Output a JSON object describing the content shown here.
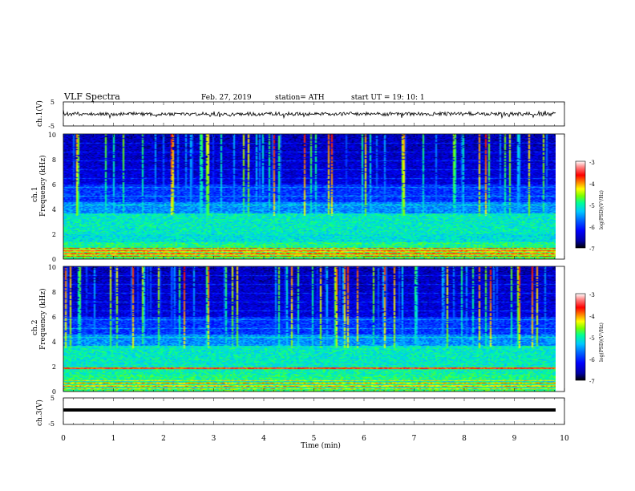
{
  "header": {
    "title": "VLF  Spectra",
    "date": "Feb. 27, 2019",
    "station": "station= ATH",
    "start": "start  UT  =    19: 10: 1"
  },
  "colors": {
    "colormap": [
      "#000000",
      "#0000a0",
      "#0000ff",
      "#0066ff",
      "#00c8ff",
      "#00ff96",
      "#78ff00",
      "#ffff00",
      "#ff8000",
      "#ff0000",
      "#ff8080",
      "#ffffff"
    ],
    "trace": "#000000"
  },
  "chart_data": [
    {
      "type": "line",
      "panel": "ch1",
      "ylabel": "ch.1(V)",
      "ylim": [
        -5,
        5
      ],
      "yticks": [
        "5",
        "-5"
      ],
      "xlim": [
        0,
        10
      ],
      "description_values": {
        "baseline": 0,
        "amplitude_range": [
          -1.2,
          1.2
        ]
      }
    },
    {
      "type": "heatmap",
      "panel": "ch1",
      "ylabel_top": "ch.1",
      "ylabel": "Frequency  (kHz)",
      "ylim": [
        0,
        10
      ],
      "yticks": [
        "0",
        "2",
        "4",
        "6",
        "8",
        "10"
      ],
      "xlim": [
        0,
        9.8
      ],
      "colorbar": {
        "label": "log(PSD)(V²/Hz)",
        "range": [
          -7,
          -3
        ],
        "ticks": [
          "-3",
          "-4",
          "-5",
          "-6",
          "-7"
        ]
      }
    },
    {
      "type": "heatmap",
      "panel": "ch2",
      "ylabel_top": "ch.2",
      "ylabel": "Frequency  (kHz)",
      "ylim": [
        0,
        10
      ],
      "yticks": [
        "0",
        "2",
        "4",
        "6",
        "8",
        "10"
      ],
      "xlim": [
        0,
        9.8
      ],
      "colorbar": {
        "label": "log(PSD)(V²/Hz)",
        "range": [
          -7,
          -3
        ],
        "ticks": [
          "-3",
          "-4",
          "-5",
          "-6",
          "-7"
        ]
      }
    },
    {
      "type": "line",
      "panel": "ch3",
      "ylabel": "ch.3(V)",
      "ylim": [
        -5,
        5
      ],
      "yticks": [
        "5",
        "-5"
      ],
      "xlim": [
        0,
        10
      ],
      "description_values": {
        "baseline": 0
      }
    }
  ],
  "xaxis": {
    "label": "Time  (min)",
    "ticks": [
      "0",
      "1",
      "2",
      "3",
      "4",
      "5",
      "6",
      "7",
      "8",
      "9",
      "10"
    ]
  }
}
